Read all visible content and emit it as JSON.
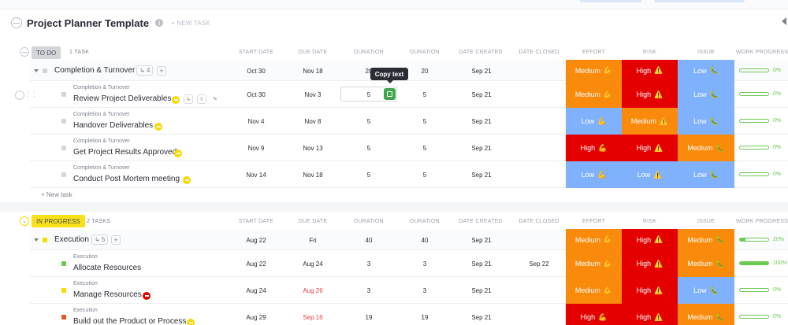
{
  "list": {
    "title": "Project Planner Template",
    "new_task_label": "+ NEW TASK",
    "info_glyph": "i"
  },
  "columns": [
    "START DATE",
    "DUE DATE",
    "DURATION",
    "DURATION",
    "DATE CREATED",
    "DATE CLOSED",
    "EFFORT",
    "RISK",
    "ISSUE",
    "WORK PROGRESS"
  ],
  "colors": {
    "medium_orange": "#f98a0b",
    "high_red": "#e50000",
    "low_blue": "#80b1fd",
    "progress_green": "#6bc950",
    "todo_gray": "#d3d5d8",
    "in_progress_yellow": "#f9e11a"
  },
  "tooltip": "Copy text",
  "todo_group": {
    "status": "TO DO",
    "count": "1 TASK",
    "new_task": "+ New task",
    "parent": {
      "name": "Completion & Turnover",
      "subtasks": "4",
      "start": "Oct 30",
      "due": "Nov 18",
      "dur1": "20",
      "dur2": "20",
      "created": "Sep 21",
      "closed": "",
      "effort": "Medium",
      "risk": "High",
      "issue": "Low",
      "progress": 0,
      "progress_label": "0%"
    },
    "tasks": [
      {
        "parent": "Completion & Turnover",
        "name": "Review Project Deliverables",
        "start": "Oct 30",
        "due": "Nov 3",
        "dur1": "5",
        "dur2": "5",
        "created": "Sep 21",
        "closed": "",
        "effort": "Medium",
        "risk": "High",
        "issue": "Low",
        "progress": 0,
        "progress_label": "0%",
        "priority": "normal"
      },
      {
        "parent": "Completion & Turnover",
        "name": "Handover Deliverables",
        "start": "Nov 4",
        "due": "Nov 8",
        "dur1": "5",
        "dur2": "5",
        "created": "Sep 21",
        "closed": "",
        "effort": "Low",
        "risk": "Medium",
        "issue": "Low",
        "progress": 0,
        "progress_label": "0%",
        "priority": "normal"
      },
      {
        "parent": "Completion & Turnover",
        "name": "Get Project Results Approved",
        "start": "Nov 9",
        "due": "Nov 13",
        "dur1": "5",
        "dur2": "5",
        "created": "Sep 21",
        "closed": "",
        "effort": "High",
        "risk": "High",
        "issue": "Medium",
        "progress": 0,
        "progress_label": "0%",
        "priority": "normal"
      },
      {
        "parent": "Completion & Turnover",
        "name": "Conduct Post Mortem meeting",
        "start": "Nov 14",
        "due": "Nov 18",
        "dur1": "5",
        "dur2": "5",
        "created": "Sep 21",
        "closed": "",
        "effort": "Low",
        "risk": "Low",
        "issue": "Low",
        "progress": 0,
        "progress_label": "0%",
        "priority": "normal"
      }
    ]
  },
  "progress_group": {
    "status": "IN PROGRESS",
    "count": "2 TASKS",
    "parent": {
      "name": "Execution",
      "subtasks": "5",
      "start": "Aug 22",
      "due": "Fri",
      "dur1": "40",
      "dur2": "40",
      "created": "Sep 21",
      "closed": "",
      "effort": "Medium",
      "risk": "High",
      "issue": "Medium",
      "progress": 20,
      "progress_label": "20%"
    },
    "tasks": [
      {
        "parent": "Execution",
        "name": "Allocate Resources",
        "start": "Aug 22",
        "due": "Aug 24",
        "due_overdue": false,
        "dur1": "3",
        "dur2": "3",
        "created": "Sep 21",
        "closed": "Sep 22",
        "effort": "Medium",
        "risk": "High",
        "issue": "Medium",
        "progress": 100,
        "progress_label": "100%",
        "square": "#6bc950"
      },
      {
        "parent": "Execution",
        "name": "Manage Resources",
        "start": "Aug 24",
        "due": "Aug 26",
        "due_overdue": true,
        "dur1": "3",
        "dur2": "3",
        "created": "Sep 21",
        "closed": "",
        "effort": "Medium",
        "risk": "High",
        "issue": "Low",
        "progress": 0,
        "progress_label": "0%",
        "square": "#f9d900",
        "priority": "urgent"
      },
      {
        "parent": "Execution",
        "name": "Build out the Product or Process",
        "start": "Aug 29",
        "due": "Sep 16",
        "due_overdue": true,
        "dur1": "19",
        "dur2": "19",
        "created": "Sep 21",
        "closed": "",
        "effort": "High",
        "risk": "High",
        "issue": "Medium",
        "progress": 0,
        "progress_label": "0%",
        "square": "#e8541f",
        "priority": "normal"
      }
    ]
  },
  "icons": {
    "effort": "flexed-biceps-icon",
    "risk": "warning-icon",
    "issue": "caterpillar-icon"
  }
}
